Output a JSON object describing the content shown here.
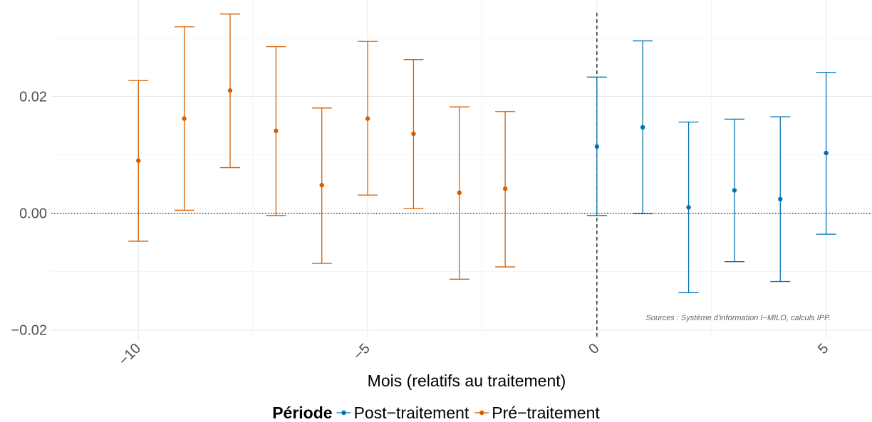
{
  "chart_data": {
    "type": "errorbar",
    "xlabel": "Mois (relatifs au traitement)",
    "ylabel": "",
    "xlim": [
      -11.9,
      6.0
    ],
    "ylim": [
      -0.0215,
      0.0365
    ],
    "x_ticks": [
      -10,
      -5,
      0,
      5
    ],
    "x_tick_labels": [
      "−10",
      "−5",
      "0",
      "5"
    ],
    "y_ticks": [
      -0.02,
      0.0,
      0.02
    ],
    "y_tick_labels": [
      "−0.02",
      "0.00",
      "0.02"
    ],
    "grid": true,
    "reference_lines": [
      {
        "axis": "y",
        "value": 0,
        "style": "dotted"
      },
      {
        "axis": "x",
        "value": 0,
        "style": "dashed"
      }
    ],
    "legend": {
      "title": "Période",
      "placement": "bottom",
      "entries": [
        "Post−traitement",
        "Pré−traitement"
      ]
    },
    "annotation": "Sources : Système d'information I−MILO, calculs IPP.",
    "series": [
      {
        "name": "Post−traitement",
        "color": "#0072B2",
        "points": [
          {
            "x": 0,
            "y": 0.0114,
            "lo": -0.0004,
            "hi": 0.0233
          },
          {
            "x": 1,
            "y": 0.0147,
            "lo": -0.0001,
            "hi": 0.0295
          },
          {
            "x": 2,
            "y": 0.001,
            "lo": -0.0136,
            "hi": 0.0156
          },
          {
            "x": 3,
            "y": 0.0039,
            "lo": -0.0083,
            "hi": 0.0161
          },
          {
            "x": 4,
            "y": 0.0024,
            "lo": -0.0117,
            "hi": 0.0165
          },
          {
            "x": 5,
            "y": 0.0103,
            "lo": -0.0036,
            "hi": 0.0241
          }
        ]
      },
      {
        "name": "Pré−traitement",
        "color": "#D55E00",
        "points": [
          {
            "x": -10,
            "y": 0.009,
            "lo": -0.0048,
            "hi": 0.0227
          },
          {
            "x": -9,
            "y": 0.0162,
            "lo": 0.0005,
            "hi": 0.0319
          },
          {
            "x": -8,
            "y": 0.021,
            "lo": 0.0078,
            "hi": 0.0341
          },
          {
            "x": -7,
            "y": 0.0141,
            "lo": -0.0004,
            "hi": 0.0285
          },
          {
            "x": -6,
            "y": 0.0048,
            "lo": -0.0086,
            "hi": 0.018
          },
          {
            "x": -5,
            "y": 0.0162,
            "lo": 0.0031,
            "hi": 0.0294
          },
          {
            "x": -4,
            "y": 0.0136,
            "lo": 0.0008,
            "hi": 0.0263
          },
          {
            "x": -3,
            "y": 0.0035,
            "lo": -0.0113,
            "hi": 0.0182
          },
          {
            "x": -2,
            "y": 0.0042,
            "lo": -0.0092,
            "hi": 0.0174
          }
        ]
      }
    ]
  }
}
